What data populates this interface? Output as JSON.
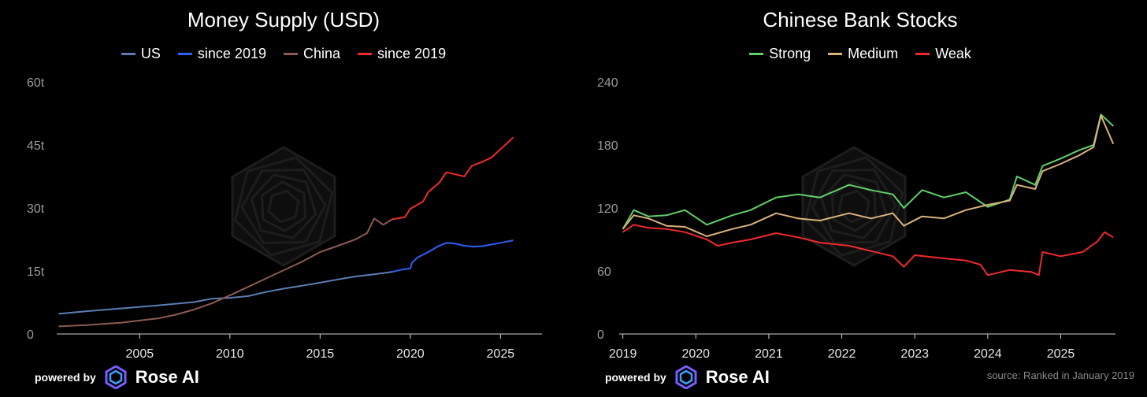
{
  "branding": {
    "powered_by": "powered by",
    "brand_name": "Rose AI"
  },
  "colors": {
    "us": "#5b7db3",
    "us_since": "#2f5ff5",
    "china": "#8c5a52",
    "china_since": "#f02a2a",
    "strong": "#5fd06a",
    "medium": "#d9b27a",
    "weak": "#f02a2a"
  },
  "left": {
    "legend": [
      {
        "label": "US",
        "color": "#5b7db3"
      },
      {
        "label": "since 2019",
        "color": "#2f5ff5"
      },
      {
        "label": "China",
        "color": "#8c5a52"
      },
      {
        "label": "since 2019",
        "color": "#f02a2a"
      }
    ]
  },
  "right": {
    "legend": [
      {
        "label": "Strong",
        "color": "#5fd06a"
      },
      {
        "label": "Medium",
        "color": "#d9b27a"
      },
      {
        "label": "Weak",
        "color": "#f02a2a"
      }
    ],
    "source": "source: Ranked in January 2019"
  },
  "chart_data": [
    {
      "type": "line",
      "title": "Money Supply (USD)",
      "xlim": [
        2000.4,
        2027.3
      ],
      "ylim": [
        0,
        60
      ],
      "x_ticks": [
        2005,
        2010,
        2015,
        2020,
        2025
      ],
      "y_ticks": [
        0,
        15,
        30,
        45,
        60
      ],
      "y_tick_labels": [
        "0",
        "15t",
        "30t",
        "45t",
        "60t"
      ],
      "grid": false,
      "legend_position": "top-center",
      "series": [
        {
          "name": "US",
          "color": "#5b7db3",
          "segment": "pre-2019",
          "points": [
            [
              2000.5,
              4.8
            ],
            [
              2002,
              5.4
            ],
            [
              2004,
              6.1
            ],
            [
              2006,
              6.8
            ],
            [
              2008,
              7.6
            ],
            [
              2009,
              8.4
            ],
            [
              2010,
              8.6
            ],
            [
              2011,
              9.0
            ],
            [
              2012,
              10.0
            ],
            [
              2013,
              10.8
            ],
            [
              2014,
              11.5
            ],
            [
              2015,
              12.2
            ],
            [
              2016,
              13.0
            ],
            [
              2017,
              13.7
            ],
            [
              2018,
              14.2
            ],
            [
              2019,
              14.8
            ]
          ]
        },
        {
          "name": "since 2019",
          "color": "#2f5ff5",
          "segment": "2019-on",
          "points": [
            [
              2019,
              14.8
            ],
            [
              2019.5,
              15.3
            ],
            [
              2020,
              15.6
            ],
            [
              2020.1,
              17.0
            ],
            [
              2020.4,
              18.2
            ],
            [
              2021,
              19.5
            ],
            [
              2021.5,
              20.8
            ],
            [
              2022,
              21.7
            ],
            [
              2022.5,
              21.5
            ],
            [
              2023,
              21.0
            ],
            [
              2023.5,
              20.8
            ],
            [
              2024,
              20.9
            ],
            [
              2024.5,
              21.3
            ],
            [
              2025,
              21.7
            ],
            [
              2025.7,
              22.3
            ]
          ]
        },
        {
          "name": "China",
          "color": "#8c5a52",
          "segment": "pre-2019",
          "points": [
            [
              2000.5,
              1.8
            ],
            [
              2002,
              2.1
            ],
            [
              2004,
              2.7
            ],
            [
              2005,
              3.2
            ],
            [
              2006,
              3.7
            ],
            [
              2007,
              4.6
            ],
            [
              2008,
              5.8
            ],
            [
              2009,
              7.3
            ],
            [
              2010,
              9.2
            ],
            [
              2011,
              11.2
            ],
            [
              2012,
              13.2
            ],
            [
              2013,
              15.2
            ],
            [
              2014,
              17.2
            ],
            [
              2015,
              19.5
            ],
            [
              2016,
              21.0
            ],
            [
              2017,
              22.6
            ],
            [
              2017.6,
              24.0
            ],
            [
              2018,
              27.5
            ],
            [
              2018.5,
              26.0
            ],
            [
              2019,
              27.3
            ]
          ]
        },
        {
          "name": "since 2019",
          "color": "#f02a2a",
          "segment": "2019-on",
          "points": [
            [
              2019,
              27.3
            ],
            [
              2019.7,
              27.8
            ],
            [
              2020,
              29.8
            ],
            [
              2020.7,
              31.5
            ],
            [
              2021,
              33.8
            ],
            [
              2021.6,
              36.0
            ],
            [
              2022,
              38.5
            ],
            [
              2022.5,
              38.0
            ],
            [
              2023,
              37.5
            ],
            [
              2023.4,
              40.0
            ],
            [
              2024,
              41.0
            ],
            [
              2024.5,
              42.0
            ],
            [
              2025,
              44.0
            ],
            [
              2025.4,
              45.5
            ],
            [
              2025.7,
              46.8
            ]
          ]
        }
      ]
    },
    {
      "type": "line",
      "title": "Chinese Bank Stocks",
      "xlim": [
        2018.95,
        2025.75
      ],
      "ylim": [
        0,
        240
      ],
      "x_ticks": [
        2019,
        2020,
        2021,
        2022,
        2023,
        2024,
        2025
      ],
      "y_ticks": [
        0,
        60,
        120,
        180,
        240
      ],
      "grid": false,
      "legend_position": "top-center",
      "series": [
        {
          "name": "Strong",
          "color": "#5fd06a",
          "points": [
            [
              2019,
              100
            ],
            [
              2019.15,
              118
            ],
            [
              2019.35,
              112
            ],
            [
              2019.6,
              113
            ],
            [
              2019.85,
              118
            ],
            [
              2020.15,
              104
            ],
            [
              2020.5,
              113
            ],
            [
              2020.75,
              118
            ],
            [
              2021.1,
              130
            ],
            [
              2021.4,
              133
            ],
            [
              2021.7,
              130
            ],
            [
              2022.1,
              142
            ],
            [
              2022.4,
              137
            ],
            [
              2022.7,
              133
            ],
            [
              2022.85,
              120
            ],
            [
              2023.1,
              137
            ],
            [
              2023.4,
              130
            ],
            [
              2023.7,
              135
            ],
            [
              2024.0,
              121
            ],
            [
              2024.3,
              128
            ],
            [
              2024.4,
              150
            ],
            [
              2024.65,
              142
            ],
            [
              2024.75,
              160
            ],
            [
              2025.0,
              167
            ],
            [
              2025.25,
              175
            ],
            [
              2025.45,
              180
            ],
            [
              2025.55,
              209
            ],
            [
              2025.72,
              198
            ]
          ]
        },
        {
          "name": "Medium",
          "color": "#d9b27a",
          "points": [
            [
              2019,
              100
            ],
            [
              2019.15,
              113
            ],
            [
              2019.35,
              110
            ],
            [
              2019.6,
              103
            ],
            [
              2019.85,
              102
            ],
            [
              2020.15,
              93
            ],
            [
              2020.5,
              100
            ],
            [
              2020.75,
              104
            ],
            [
              2021.1,
              115
            ],
            [
              2021.4,
              110
            ],
            [
              2021.7,
              108
            ],
            [
              2022.1,
              115
            ],
            [
              2022.4,
              110
            ],
            [
              2022.7,
              115
            ],
            [
              2022.85,
              103
            ],
            [
              2023.1,
              112
            ],
            [
              2023.4,
              110
            ],
            [
              2023.7,
              118
            ],
            [
              2024.0,
              123
            ],
            [
              2024.3,
              127
            ],
            [
              2024.4,
              142
            ],
            [
              2024.65,
              138
            ],
            [
              2024.75,
              155
            ],
            [
              2025.0,
              162
            ],
            [
              2025.25,
              170
            ],
            [
              2025.45,
              178
            ],
            [
              2025.55,
              208
            ],
            [
              2025.72,
              181
            ]
          ]
        },
        {
          "name": "Weak",
          "color": "#f02a2a",
          "points": [
            [
              2019,
              97
            ],
            [
              2019.15,
              104
            ],
            [
              2019.35,
              101
            ],
            [
              2019.6,
              100
            ],
            [
              2019.85,
              97
            ],
            [
              2020.15,
              90
            ],
            [
              2020.3,
              84
            ],
            [
              2020.5,
              87
            ],
            [
              2020.75,
              90
            ],
            [
              2021.1,
              96
            ],
            [
              2021.4,
              92
            ],
            [
              2021.7,
              87
            ],
            [
              2022.1,
              84
            ],
            [
              2022.4,
              79
            ],
            [
              2022.7,
              74
            ],
            [
              2022.85,
              64
            ],
            [
              2023.0,
              75
            ],
            [
              2023.4,
              72
            ],
            [
              2023.7,
              70
            ],
            [
              2023.9,
              66
            ],
            [
              2024.0,
              56
            ],
            [
              2024.3,
              61
            ],
            [
              2024.6,
              59
            ],
            [
              2024.7,
              56
            ],
            [
              2024.75,
              78
            ],
            [
              2025.0,
              74
            ],
            [
              2025.3,
              78
            ],
            [
              2025.5,
              88
            ],
            [
              2025.6,
              97
            ],
            [
              2025.72,
              92
            ]
          ]
        }
      ]
    }
  ]
}
